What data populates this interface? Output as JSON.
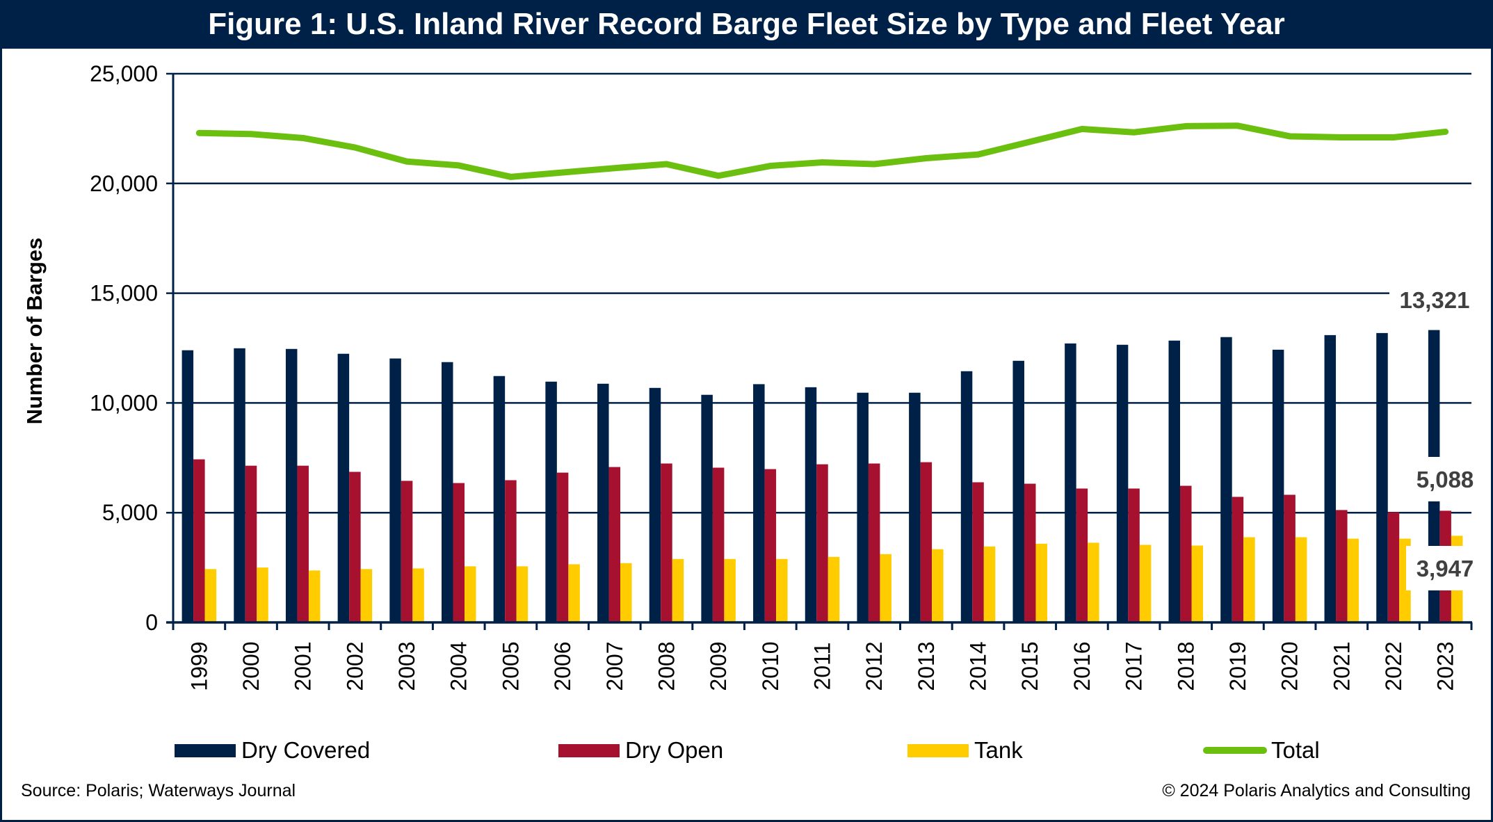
{
  "title": "Figure 1: U.S. Inland River Record Barge Fleet Size by Type and Fleet Year",
  "source": "Source: Polaris; Waterways Journal",
  "copyright": "© 2024 Polaris Analytics and Consulting",
  "colors": {
    "frame": "#002147",
    "dry_covered": "#002147",
    "dry_open": "#A6112F",
    "tank": "#FFCC00",
    "total": "#6ABF0F",
    "gridline": "#002147",
    "data_label": "#404040"
  },
  "chart_data": {
    "type": "bar",
    "title": "Figure 1: U.S. Inland River Record Barge Fleet Size by Type and Fleet Year",
    "xlabel": "",
    "ylabel": "Number of Barges",
    "ylim": [
      0,
      25000
    ],
    "yticks": [
      0,
      5000,
      10000,
      15000,
      20000,
      25000
    ],
    "ytick_labels": [
      "0",
      "5,000",
      "10,000",
      "15,000",
      "20,000",
      "25,000"
    ],
    "grid": true,
    "legend_position": "bottom",
    "categories": [
      "1999",
      "2000",
      "2001",
      "2002",
      "2003",
      "2004",
      "2005",
      "2006",
      "2007",
      "2008",
      "2009",
      "2010",
      "2011",
      "2012",
      "2013",
      "2014",
      "2015",
      "2016",
      "2017",
      "2018",
      "2019",
      "2020",
      "2021",
      "2022",
      "2023"
    ],
    "series": [
      {
        "name": "Dry Covered",
        "type": "bar",
        "color": "#002147",
        "values": [
          12400,
          12490,
          12460,
          12240,
          12025,
          11860,
          11225,
          10970,
          10875,
          10685,
          10370,
          10855,
          10715,
          10465,
          10465,
          11445,
          11920,
          12710,
          12650,
          12840,
          13000,
          12425,
          13090,
          13185,
          13321
        ]
      },
      {
        "name": "Dry Open",
        "type": "bar",
        "color": "#A6112F",
        "values": [
          7430,
          7140,
          7140,
          6860,
          6450,
          6350,
          6480,
          6825,
          7080,
          7240,
          7050,
          6985,
          7205,
          7240,
          7300,
          6385,
          6320,
          6100,
          6100,
          6225,
          5720,
          5815,
          5120,
          5020,
          5088
        ]
      },
      {
        "name": "Tank",
        "type": "bar",
        "color": "#FFCC00",
        "values": [
          2430,
          2500,
          2365,
          2430,
          2460,
          2555,
          2555,
          2650,
          2700,
          2890,
          2890,
          2890,
          2985,
          3110,
          3335,
          3460,
          3585,
          3630,
          3535,
          3500,
          3880,
          3880,
          3815,
          3815,
          3947
        ]
      },
      {
        "name": "Total",
        "type": "line",
        "color": "#6ABF0F",
        "values": [
          22300,
          22250,
          22070,
          21640,
          21000,
          20820,
          20300,
          20500,
          20700,
          20880,
          20350,
          20800,
          20960,
          20880,
          21150,
          21320,
          21900,
          22480,
          22330,
          22610,
          22630,
          22150,
          22100,
          22100,
          22356
        ]
      }
    ],
    "annotations": [
      {
        "series": "Dry Covered",
        "category": "2023",
        "text": "13,321"
      },
      {
        "series": "Dry Open",
        "category": "2023",
        "text": "5,088"
      },
      {
        "series": "Tank",
        "category": "2023",
        "text": "3,947"
      }
    ]
  },
  "legend": [
    {
      "label": "Dry Covered",
      "kind": "bar",
      "color": "#002147"
    },
    {
      "label": "Dry Open",
      "kind": "bar",
      "color": "#A6112F"
    },
    {
      "label": "Tank",
      "kind": "bar",
      "color": "#FFCC00"
    },
    {
      "label": "Total",
      "kind": "line",
      "color": "#6ABF0F"
    }
  ]
}
